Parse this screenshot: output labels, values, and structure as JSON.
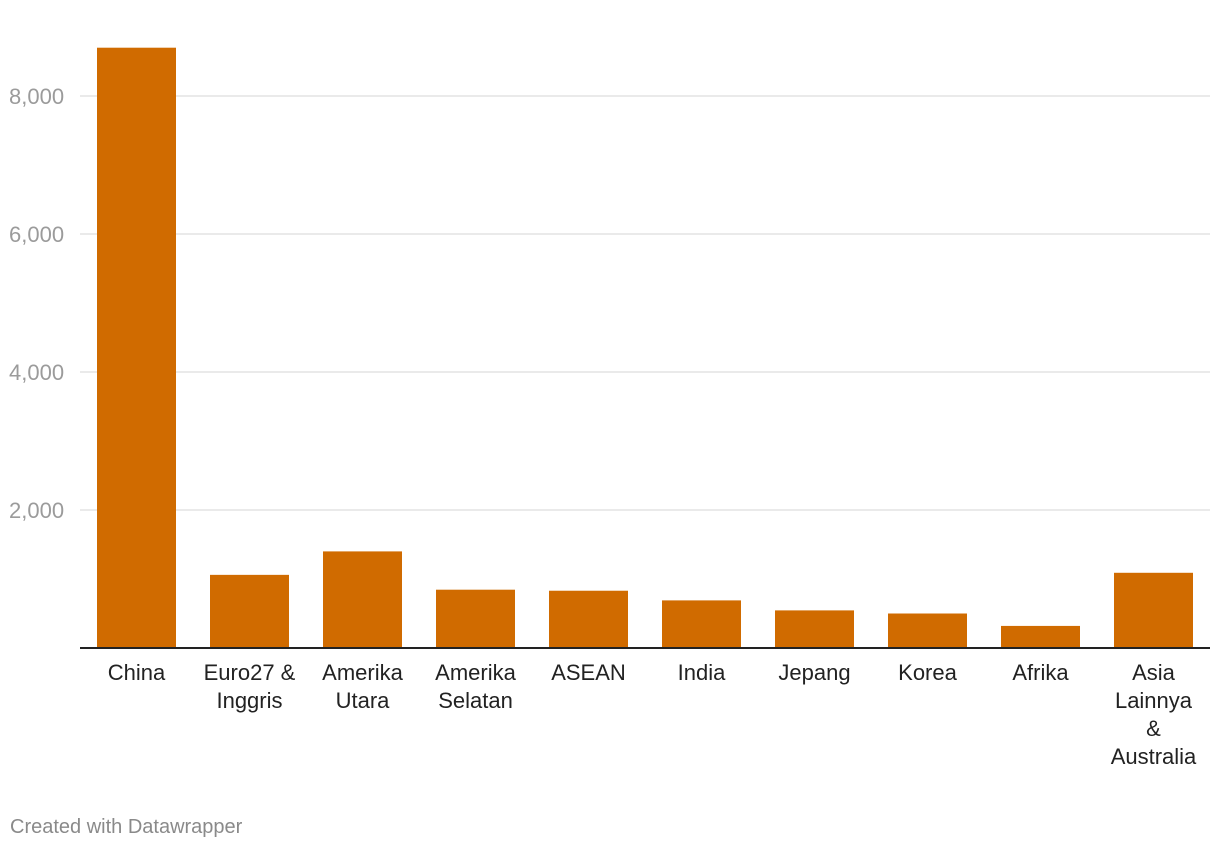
{
  "chart_data": {
    "type": "bar",
    "categories": [
      [
        "China"
      ],
      [
        "Euro27 &",
        "Inggris"
      ],
      [
        "Amerika",
        "Utara"
      ],
      [
        "Amerika",
        "Selatan"
      ],
      [
        "ASEAN"
      ],
      [
        "India"
      ],
      [
        "Jepang"
      ],
      [
        "Korea"
      ],
      [
        "Afrika"
      ],
      [
        "Asia",
        "Lainnya",
        "&",
        "Australia"
      ]
    ],
    "values": [
      8700,
      1060,
      1400,
      845,
      830,
      690,
      545,
      500,
      320,
      1090
    ],
    "ylim": [
      0,
      9000
    ],
    "yticks": [
      2000,
      4000,
      6000,
      8000
    ],
    "ytick_labels": [
      "2,000",
      "4,000",
      "6,000",
      "8,000"
    ],
    "grid": true,
    "bar_color": "#d06b00",
    "gridline_color": "#e3e3e3",
    "axis_color": "#222222"
  },
  "footer": {
    "credit": "Created with Datawrapper"
  }
}
